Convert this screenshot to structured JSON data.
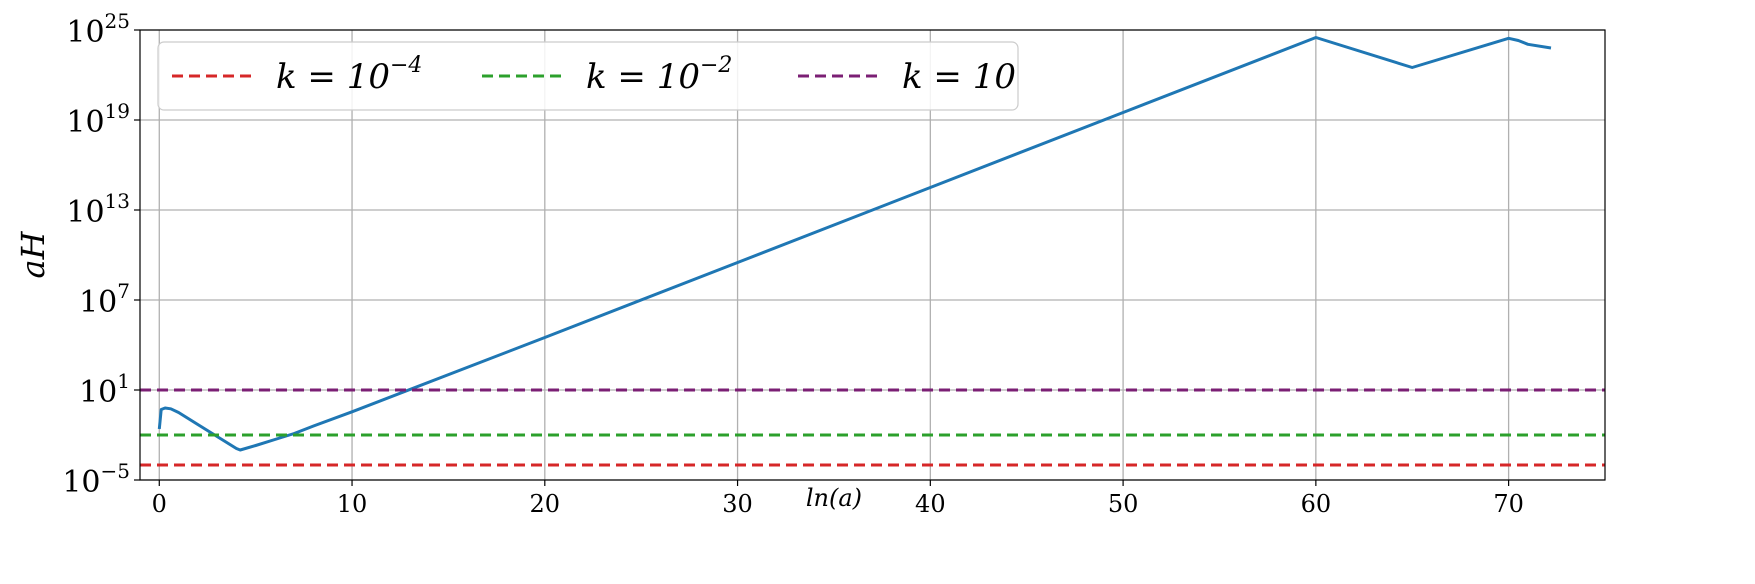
{
  "chart_data": {
    "type": "line",
    "xlabel": "ln(a)",
    "ylabel": "aH",
    "xlim": [
      -1,
      75
    ],
    "ylim_log10": [
      -5,
      25
    ],
    "y_scale": "log",
    "grid": true,
    "legend_placement": "top-left",
    "x_ticks": [
      {
        "value": 0,
        "label": "0"
      },
      {
        "value": 10,
        "label": "10"
      },
      {
        "value": 20,
        "label": "20"
      },
      {
        "value": 30,
        "label": "30"
      },
      {
        "value": 40,
        "label": "40"
      },
      {
        "value": 50,
        "label": "50"
      },
      {
        "value": 60,
        "label": "60"
      },
      {
        "value": 70,
        "label": "70"
      }
    ],
    "y_ticks": [
      {
        "exp": -5,
        "base": "10",
        "sup": "−5"
      },
      {
        "exp": 1,
        "base": "10",
        "sup": "1"
      },
      {
        "exp": 7,
        "base": "10",
        "sup": "7"
      },
      {
        "exp": 13,
        "base": "10",
        "sup": "13"
      },
      {
        "exp": 19,
        "base": "10",
        "sup": "19"
      },
      {
        "exp": 25,
        "base": "10",
        "sup": "25"
      }
    ],
    "series": [
      {
        "color": "#1f77b4",
        "style": "solid",
        "x": [
          0,
          0.1,
          0.3,
          0.6,
          1,
          2,
          3,
          4,
          4.2,
          5,
          6,
          7,
          8,
          10,
          20,
          30,
          40,
          50,
          60,
          65,
          70,
          70.5,
          71,
          72.2
        ],
        "log10_y": [
          -1.6,
          -0.3,
          -0.2,
          -0.25,
          -0.5,
          -1.3,
          -2.1,
          -2.9,
          -3.0,
          -2.7,
          -2.3,
          -1.9,
          -1.4,
          -0.45,
          4.5,
          9.5,
          14.5,
          19.5,
          24.5,
          22.5,
          24.45,
          24.3,
          24.05,
          23.8
        ]
      },
      {
        "name": "k = 10⁻⁴",
        "color": "#d62728",
        "style": "dashed",
        "x": [
          -1,
          75
        ],
        "log10_y": [
          -4,
          -4
        ]
      },
      {
        "name": "k = 10⁻²",
        "color": "#2ca02c",
        "style": "dashed",
        "x": [
          -1,
          75
        ],
        "log10_y": [
          -2,
          -2
        ]
      },
      {
        "name": "k = 10",
        "color": "#7b1f74",
        "style": "dashed",
        "x": [
          -1,
          75
        ],
        "log10_y": [
          1,
          1
        ]
      }
    ],
    "legend": [
      {
        "label_main": "k = 10",
        "label_sup": "−4",
        "color": "#d62728"
      },
      {
        "label_main": "k = 10",
        "label_sup": "−2",
        "color": "#2ca02c"
      },
      {
        "label_main": "k = 10",
        "label_sup": "",
        "color": "#7b1f74"
      }
    ]
  }
}
